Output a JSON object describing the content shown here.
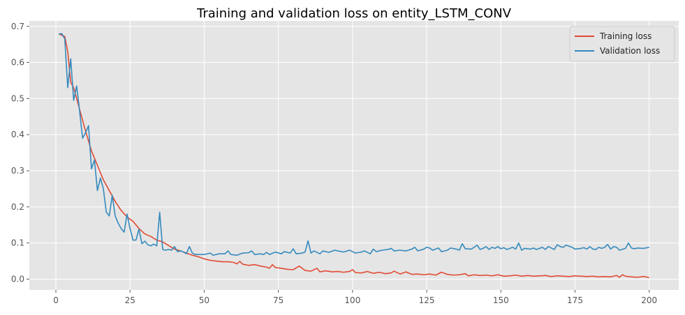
{
  "chart_data": {
    "type": "line",
    "title": "Training and validation loss on entity_LSTM_CONV",
    "xlabel": "",
    "ylabel": "",
    "xlim": [
      -8.95,
      209.95
    ],
    "ylim": [
      -0.03,
      0.715
    ],
    "xticks": [
      0,
      25,
      50,
      75,
      100,
      125,
      150,
      175,
      200
    ],
    "xtick_labels": [
      "0",
      "25",
      "50",
      "75",
      "100",
      "125",
      "150",
      "175",
      "200"
    ],
    "yticks": [
      0.0,
      0.1,
      0.2,
      0.3,
      0.4,
      0.5,
      0.6,
      0.7
    ],
    "ytick_labels": [
      "0.0",
      "0.1",
      "0.2",
      "0.3",
      "0.4",
      "0.5",
      "0.6",
      "0.7"
    ],
    "grid": true,
    "legend_position": "top-right",
    "series": [
      {
        "name": "Training loss",
        "color": "#e24a33",
        "points": [
          [
            1,
            0.68
          ],
          [
            2,
            0.675
          ],
          [
            3,
            0.672
          ],
          [
            4,
            0.63
          ],
          [
            5,
            0.545
          ],
          [
            6,
            0.53
          ],
          [
            8,
            0.47
          ],
          [
            10,
            0.41
          ],
          [
            12,
            0.355
          ],
          [
            14,
            0.315
          ],
          [
            16,
            0.275
          ],
          [
            18,
            0.245
          ],
          [
            20,
            0.215
          ],
          [
            22,
            0.19
          ],
          [
            24,
            0.172
          ],
          [
            26,
            0.16
          ],
          [
            28,
            0.14
          ],
          [
            30,
            0.125
          ],
          [
            32,
            0.118
          ],
          [
            34,
            0.108
          ],
          [
            36,
            0.103
          ],
          [
            38,
            0.093
          ],
          [
            40,
            0.083
          ],
          [
            42,
            0.078
          ],
          [
            44,
            0.072
          ],
          [
            46,
            0.066
          ],
          [
            48,
            0.062
          ],
          [
            50,
            0.056
          ],
          [
            52,
            0.052
          ],
          [
            54,
            0.05
          ],
          [
            56,
            0.048
          ],
          [
            58,
            0.048
          ],
          [
            60,
            0.046
          ],
          [
            61,
            0.042
          ],
          [
            62,
            0.049
          ],
          [
            63,
            0.041
          ],
          [
            65,
            0.038
          ],
          [
            67,
            0.04
          ],
          [
            69,
            0.036
          ],
          [
            71,
            0.033
          ],
          [
            72,
            0.03
          ],
          [
            73,
            0.04
          ],
          [
            74,
            0.032
          ],
          [
            76,
            0.03
          ],
          [
            78,
            0.027
          ],
          [
            80,
            0.026
          ],
          [
            82,
            0.036
          ],
          [
            84,
            0.024
          ],
          [
            86,
            0.022
          ],
          [
            88,
            0.03
          ],
          [
            89,
            0.02
          ],
          [
            91,
            0.023
          ],
          [
            93,
            0.02
          ],
          [
            95,
            0.021
          ],
          [
            97,
            0.019
          ],
          [
            99,
            0.021
          ],
          [
            100,
            0.026
          ],
          [
            101,
            0.018
          ],
          [
            103,
            0.017
          ],
          [
            105,
            0.021
          ],
          [
            107,
            0.016
          ],
          [
            109,
            0.019
          ],
          [
            111,
            0.015
          ],
          [
            113,
            0.017
          ],
          [
            114,
            0.022
          ],
          [
            116,
            0.014
          ],
          [
            118,
            0.02
          ],
          [
            120,
            0.013
          ],
          [
            122,
            0.014
          ],
          [
            124,
            0.012
          ],
          [
            126,
            0.014
          ],
          [
            128,
            0.011
          ],
          [
            130,
            0.019
          ],
          [
            132,
            0.013
          ],
          [
            134,
            0.011
          ],
          [
            136,
            0.012
          ],
          [
            138,
            0.015
          ],
          [
            139,
            0.009
          ],
          [
            141,
            0.012
          ],
          [
            143,
            0.01
          ],
          [
            145,
            0.011
          ],
          [
            147,
            0.009
          ],
          [
            149,
            0.012
          ],
          [
            151,
            0.008
          ],
          [
            153,
            0.009
          ],
          [
            155,
            0.011
          ],
          [
            157,
            0.008
          ],
          [
            159,
            0.01
          ],
          [
            161,
            0.008
          ],
          [
            163,
            0.009
          ],
          [
            165,
            0.01
          ],
          [
            167,
            0.007
          ],
          [
            169,
            0.009
          ],
          [
            171,
            0.008
          ],
          [
            173,
            0.007
          ],
          [
            175,
            0.009
          ],
          [
            177,
            0.008
          ],
          [
            179,
            0.007
          ],
          [
            181,
            0.008
          ],
          [
            183,
            0.006
          ],
          [
            185,
            0.007
          ],
          [
            187,
            0.006
          ],
          [
            189,
            0.01
          ],
          [
            190,
            0.005
          ],
          [
            191,
            0.012
          ],
          [
            192,
            0.008
          ],
          [
            194,
            0.006
          ],
          [
            196,
            0.005
          ],
          [
            198,
            0.007
          ],
          [
            199,
            0.006
          ],
          [
            200,
            0.004
          ]
        ]
      },
      {
        "name": "Validation loss",
        "color": "#348abd",
        "points": [
          [
            1,
            0.678
          ],
          [
            2,
            0.68
          ],
          [
            3,
            0.665
          ],
          [
            4,
            0.53
          ],
          [
            5,
            0.61
          ],
          [
            6,
            0.495
          ],
          [
            7,
            0.535
          ],
          [
            8,
            0.465
          ],
          [
            9,
            0.39
          ],
          [
            10,
            0.405
          ],
          [
            11,
            0.425
          ],
          [
            12,
            0.305
          ],
          [
            13,
            0.33
          ],
          [
            14,
            0.245
          ],
          [
            15,
            0.28
          ],
          [
            16,
            0.25
          ],
          [
            17,
            0.185
          ],
          [
            18,
            0.175
          ],
          [
            19,
            0.232
          ],
          [
            20,
            0.175
          ],
          [
            21,
            0.155
          ],
          [
            22,
            0.14
          ],
          [
            23,
            0.13
          ],
          [
            24,
            0.18
          ],
          [
            25,
            0.14
          ],
          [
            26,
            0.108
          ],
          [
            27,
            0.108
          ],
          [
            28,
            0.138
          ],
          [
            29,
            0.098
          ],
          [
            30,
            0.105
          ],
          [
            31,
            0.095
          ],
          [
            32,
            0.092
          ],
          [
            33,
            0.097
          ],
          [
            34,
            0.092
          ],
          [
            35,
            0.185
          ],
          [
            36,
            0.082
          ],
          [
            37,
            0.08
          ],
          [
            38,
            0.082
          ],
          [
            39,
            0.08
          ],
          [
            40,
            0.09
          ],
          [
            41,
            0.076
          ],
          [
            42,
            0.078
          ],
          [
            43,
            0.075
          ],
          [
            44,
            0.07
          ],
          [
            45,
            0.09
          ],
          [
            46,
            0.072
          ],
          [
            47,
            0.068
          ],
          [
            48,
            0.068
          ],
          [
            50,
            0.068
          ],
          [
            52,
            0.072
          ],
          [
            53,
            0.066
          ],
          [
            55,
            0.07
          ],
          [
            57,
            0.07
          ],
          [
            58,
            0.078
          ],
          [
            59,
            0.068
          ],
          [
            61,
            0.066
          ],
          [
            63,
            0.072
          ],
          [
            65,
            0.073
          ],
          [
            66,
            0.078
          ],
          [
            67,
            0.068
          ],
          [
            69,
            0.07
          ],
          [
            70,
            0.068
          ],
          [
            71,
            0.074
          ],
          [
            72,
            0.068
          ],
          [
            74,
            0.075
          ],
          [
            76,
            0.07
          ],
          [
            77,
            0.076
          ],
          [
            79,
            0.072
          ],
          [
            80,
            0.084
          ],
          [
            81,
            0.07
          ],
          [
            83,
            0.072
          ],
          [
            84,
            0.075
          ],
          [
            85,
            0.106
          ],
          [
            86,
            0.072
          ],
          [
            87,
            0.078
          ],
          [
            89,
            0.07
          ],
          [
            90,
            0.078
          ],
          [
            92,
            0.074
          ],
          [
            94,
            0.08
          ],
          [
            95,
            0.078
          ],
          [
            97,
            0.075
          ],
          [
            99,
            0.08
          ],
          [
            101,
            0.072
          ],
          [
            103,
            0.075
          ],
          [
            104,
            0.078
          ],
          [
            106,
            0.07
          ],
          [
            107,
            0.083
          ],
          [
            108,
            0.076
          ],
          [
            110,
            0.08
          ],
          [
            112,
            0.082
          ],
          [
            113,
            0.085
          ],
          [
            114,
            0.078
          ],
          [
            116,
            0.08
          ],
          [
            118,
            0.078
          ],
          [
            120,
            0.083
          ],
          [
            121,
            0.088
          ],
          [
            122,
            0.078
          ],
          [
            124,
            0.083
          ],
          [
            125,
            0.088
          ],
          [
            126,
            0.086
          ],
          [
            127,
            0.08
          ],
          [
            129,
            0.086
          ],
          [
            130,
            0.076
          ],
          [
            132,
            0.08
          ],
          [
            133,
            0.086
          ],
          [
            135,
            0.083
          ],
          [
            136,
            0.08
          ],
          [
            137,
            0.098
          ],
          [
            138,
            0.084
          ],
          [
            140,
            0.083
          ],
          [
            141,
            0.088
          ],
          [
            142,
            0.094
          ],
          [
            143,
            0.082
          ],
          [
            144,
            0.085
          ],
          [
            145,
            0.09
          ],
          [
            146,
            0.082
          ],
          [
            147,
            0.088
          ],
          [
            148,
            0.085
          ],
          [
            149,
            0.09
          ],
          [
            150,
            0.084
          ],
          [
            151,
            0.087
          ],
          [
            152,
            0.082
          ],
          [
            154,
            0.088
          ],
          [
            155,
            0.083
          ],
          [
            156,
            0.1
          ],
          [
            157,
            0.08
          ],
          [
            158,
            0.085
          ],
          [
            160,
            0.083
          ],
          [
            161,
            0.086
          ],
          [
            162,
            0.082
          ],
          [
            164,
            0.088
          ],
          [
            165,
            0.082
          ],
          [
            166,
            0.09
          ],
          [
            168,
            0.082
          ],
          [
            169,
            0.095
          ],
          [
            170,
            0.09
          ],
          [
            171,
            0.088
          ],
          [
            172,
            0.094
          ],
          [
            174,
            0.088
          ],
          [
            175,
            0.083
          ],
          [
            177,
            0.085
          ],
          [
            178,
            0.087
          ],
          [
            179,
            0.083
          ],
          [
            180,
            0.09
          ],
          [
            181,
            0.083
          ],
          [
            182,
            0.082
          ],
          [
            183,
            0.088
          ],
          [
            184,
            0.085
          ],
          [
            185,
            0.088
          ],
          [
            186,
            0.096
          ],
          [
            187,
            0.083
          ],
          [
            188,
            0.09
          ],
          [
            189,
            0.088
          ],
          [
            190,
            0.08
          ],
          [
            192,
            0.085
          ],
          [
            193,
            0.1
          ],
          [
            194,
            0.086
          ],
          [
            195,
            0.084
          ],
          [
            196,
            0.086
          ],
          [
            198,
            0.085
          ],
          [
            200,
            0.088
          ]
        ]
      }
    ]
  }
}
